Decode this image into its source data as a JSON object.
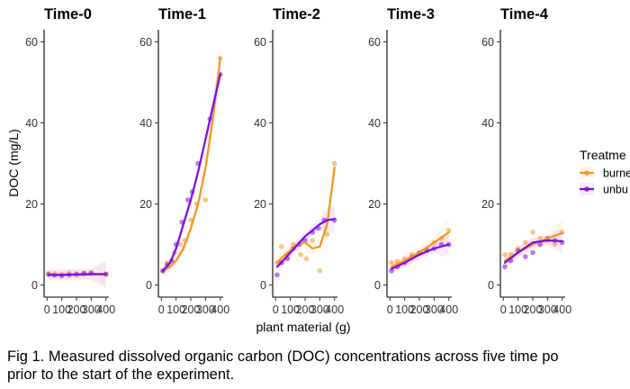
{
  "chart_data": {
    "type": "scatter",
    "panels": [
      {
        "title": "Time-0",
        "points": {
          "burned": [
            [
              10,
              2.9
            ],
            [
              50,
              2.8
            ],
            [
              100,
              2.6
            ],
            [
              150,
              2.9
            ],
            [
              200,
              2.5
            ],
            [
              250,
              2.7
            ],
            [
              300,
              2.8
            ],
            [
              400,
              2.6
            ]
          ],
          "unburned": [
            [
              10,
              2.6
            ],
            [
              50,
              2.4
            ],
            [
              100,
              2.3
            ],
            [
              150,
              2.5
            ],
            [
              200,
              2.7
            ],
            [
              250,
              2.9
            ],
            [
              300,
              3.0
            ],
            [
              400,
              2.7
            ]
          ]
        },
        "fits": {
          "burned": [
            [
              10,
              2.6
            ],
            [
              100,
              2.6
            ],
            [
              200,
              2.5
            ],
            [
              300,
              2.6
            ],
            [
              400,
              2.6
            ]
          ],
          "unburned": [
            [
              10,
              2.5
            ],
            [
              100,
              2.5
            ],
            [
              200,
              2.6
            ],
            [
              300,
              2.7
            ],
            [
              400,
              2.7
            ]
          ]
        }
      },
      {
        "title": "Time-1",
        "points": {
          "burned": [
            [
              10,
              3.5
            ],
            [
              40,
              5.5
            ],
            [
              90,
              8
            ],
            [
              130,
              10
            ],
            [
              160,
              11
            ],
            [
              200,
              16
            ],
            [
              240,
              20
            ],
            [
              300,
              21
            ],
            [
              400,
              56
            ]
          ],
          "unburned": [
            [
              10,
              3.5
            ],
            [
              40,
              5
            ],
            [
              70,
              6
            ],
            [
              100,
              10
            ],
            [
              140,
              15.5
            ],
            [
              180,
              21
            ],
            [
              210,
              23
            ],
            [
              250,
              30
            ],
            [
              330,
              41
            ],
            [
              400,
              52
            ]
          ]
        },
        "fits": {
          "burned": [
            [
              10,
              3.5
            ],
            [
              60,
              4.5
            ],
            [
              100,
              6
            ],
            [
              150,
              9
            ],
            [
              200,
              14
            ],
            [
              250,
              20
            ],
            [
              300,
              29
            ],
            [
              350,
              41
            ],
            [
              400,
              56
            ]
          ],
          "unburned": [
            [
              10,
              3.5
            ],
            [
              60,
              5.5
            ],
            [
              100,
              9
            ],
            [
              150,
              15
            ],
            [
              200,
              21
            ],
            [
              250,
              28
            ],
            [
              300,
              36
            ],
            [
              350,
              44
            ],
            [
              400,
              52
            ]
          ]
        }
      },
      {
        "title": "Time-2",
        "points": {
          "burned": [
            [
              10,
              5.5
            ],
            [
              40,
              9.5
            ],
            [
              80,
              7.5
            ],
            [
              120,
              10
            ],
            [
              170,
              7.5
            ],
            [
              210,
              6.5
            ],
            [
              250,
              11
            ],
            [
              300,
              3.5
            ],
            [
              350,
              12.5
            ],
            [
              400,
              30
            ]
          ],
          "unburned": [
            [
              10,
              2.5
            ],
            [
              40,
              5.5
            ],
            [
              80,
              6.5
            ],
            [
              120,
              9
            ],
            [
              160,
              10
            ],
            [
              200,
              11
            ],
            [
              250,
              13
            ],
            [
              290,
              14
            ],
            [
              330,
              16
            ],
            [
              400,
              16
            ]
          ]
        },
        "fits": {
          "burned": [
            [
              10,
              5.5
            ],
            [
              50,
              7
            ],
            [
              100,
              8.5
            ],
            [
              150,
              10
            ],
            [
              200,
              10.5
            ],
            [
              250,
              9
            ],
            [
              300,
              9.5
            ],
            [
              350,
              15
            ],
            [
              400,
              29
            ]
          ],
          "unburned": [
            [
              10,
              4.5
            ],
            [
              50,
              6
            ],
            [
              100,
              8
            ],
            [
              150,
              10
            ],
            [
              200,
              12
            ],
            [
              250,
              13.5
            ],
            [
              300,
              15
            ],
            [
              350,
              16
            ],
            [
              400,
              16.3
            ]
          ]
        }
      },
      {
        "title": "Time-3",
        "points": {
          "burned": [
            [
              10,
              5.5
            ],
            [
              50,
              5.8
            ],
            [
              100,
              6.5
            ],
            [
              150,
              7.5
            ],
            [
              200,
              8
            ],
            [
              250,
              9
            ],
            [
              300,
              10.5
            ],
            [
              350,
              11.5
            ],
            [
              400,
              13.5
            ]
          ],
          "unburned": [
            [
              10,
              3.5
            ],
            [
              50,
              4.5
            ],
            [
              100,
              5.5
            ],
            [
              150,
              6.8
            ],
            [
              200,
              7.8
            ],
            [
              250,
              8.5
            ],
            [
              300,
              9
            ],
            [
              350,
              10
            ],
            [
              400,
              10
            ]
          ]
        },
        "fits": {
          "burned": [
            [
              10,
              4.5
            ],
            [
              100,
              6
            ],
            [
              200,
              8
            ],
            [
              300,
              10.5
            ],
            [
              400,
              13
            ]
          ],
          "unburned": [
            [
              10,
              4
            ],
            [
              100,
              5.5
            ],
            [
              200,
              7.5
            ],
            [
              300,
              9
            ],
            [
              400,
              10
            ]
          ]
        }
      },
      {
        "title": "Time-4",
        "points": {
          "burned": [
            [
              10,
              7.5
            ],
            [
              50,
              7.5
            ],
            [
              100,
              9
            ],
            [
              150,
              10.5
            ],
            [
              200,
              13
            ],
            [
              250,
              11.5
            ],
            [
              300,
              11
            ],
            [
              350,
              10
            ],
            [
              400,
              13
            ]
          ],
          "unburned": [
            [
              10,
              4.5
            ],
            [
              50,
              6
            ],
            [
              100,
              8.5
            ],
            [
              150,
              7
            ],
            [
              200,
              8
            ],
            [
              250,
              10
            ],
            [
              300,
              11.5
            ],
            [
              350,
              11
            ],
            [
              400,
              10.5
            ]
          ]
        },
        "fits": {
          "burned": [
            [
              10,
              6
            ],
            [
              100,
              8
            ],
            [
              200,
              10
            ],
            [
              300,
              11.5
            ],
            [
              400,
              12.8
            ]
          ],
          "unburned": [
            [
              10,
              5.5
            ],
            [
              100,
              8
            ],
            [
              200,
              10.5
            ],
            [
              300,
              11
            ],
            [
              400,
              10.8
            ]
          ]
        }
      }
    ],
    "ylabel": "DOC (mg/L)",
    "xlabel": "plant material (g)",
    "ylim": [
      -3,
      63
    ],
    "yticks": [
      0,
      20,
      40,
      60
    ],
    "xlim": [
      -20,
      420
    ],
    "xtick_labels": [
      "0",
      "100",
      "200",
      "300",
      "400"
    ],
    "xticks": [
      0,
      100,
      200,
      300,
      400
    ],
    "legend": {
      "title": "Treatme",
      "position": "right",
      "items": [
        "burne",
        "unbu"
      ]
    },
    "series_colors": {
      "burned": "#f7931e",
      "unburned": "#7f0ae6"
    },
    "grid": false
  },
  "caption": {
    "line1": "Fig 1. Measured dissolved organic carbon (DOC) concentrations across five time po",
    "line2": "prior to the start of the experiment."
  }
}
